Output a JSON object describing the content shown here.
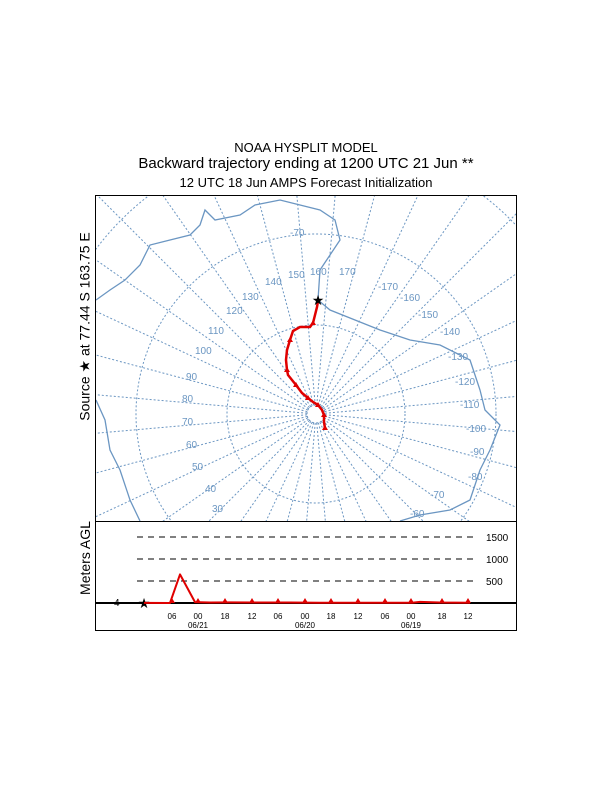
{
  "title": {
    "line1": "NOAA HYSPLIT MODEL",
    "line2": "Backward trajectory ending at 1200 UTC 21 Jun **",
    "line3": "12 UTC 18 Jun    AMPS  Forecast Initialization"
  },
  "source_label": "Source ★ at  77.44 S  163.75 E",
  "height_axis_label": "Meters AGL",
  "colors": {
    "map": "#6b96c2",
    "trajectory": "#e00000"
  },
  "map": {
    "latitude_label": "-70",
    "longitude_labels": [
      "30",
      "40",
      "50",
      "60",
      "70",
      "80",
      "90",
      "100",
      "110",
      "120",
      "130",
      "140",
      "150",
      "160",
      "170",
      "-170",
      "-160",
      "-150",
      "-140",
      "-130",
      "-120",
      "-110",
      "-100",
      "-90",
      "-80",
      "-70",
      "-60"
    ]
  },
  "height_panel": {
    "levels": [
      "500",
      "1000",
      "1500"
    ],
    "start_height": "4",
    "time_ticks": [
      "06",
      "00",
      "18",
      "12",
      "06",
      "00",
      "18",
      "12",
      "06",
      "00",
      "18",
      "12"
    ],
    "dates": [
      "06/21",
      "06/20",
      "06/19"
    ],
    "heights_m": [
      4,
      0,
      650,
      20,
      10,
      15,
      10,
      10,
      5,
      5,
      5,
      5,
      5,
      25,
      10,
      5
    ]
  }
}
